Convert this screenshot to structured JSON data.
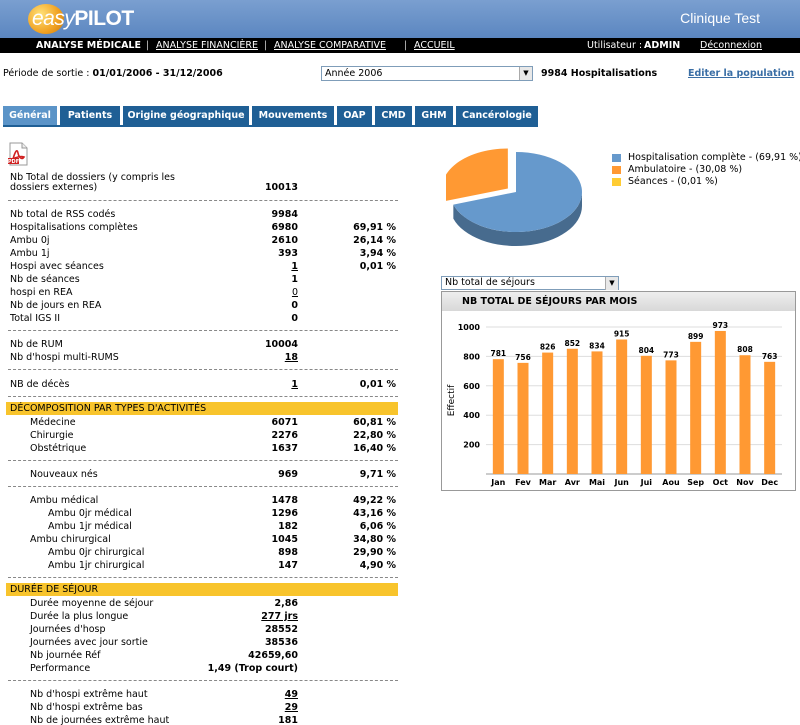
{
  "brand": {
    "logo_text_easy": "easy",
    "logo_text_pilot": "PILOT",
    "clinic": "Clinique Test"
  },
  "nav": {
    "items": [
      "ANALYSE MÉDICALE",
      "ANALYSE FINANCIÈRE",
      "ANALYSE COMPARATIVE",
      "ACCUEIL"
    ],
    "user_label": "Utilisateur :",
    "user": "ADMIN",
    "logout": "Déconnexion"
  },
  "period": {
    "label": "Période de sortie :",
    "value": "01/01/2006 - 31/12/2006",
    "select_value": "Année 2006",
    "hosp_count": "9984 Hospitalisations",
    "edit_link": "Editer la population"
  },
  "tabs": [
    "Général",
    "Patients",
    "Origine géographique",
    "Mouvements",
    "OAP",
    "CMD",
    "GHM",
    "Cancérologie"
  ],
  "stats": {
    "total_dossiers": {
      "label_1": "Nb Total de dossiers (y compris les",
      "label_2": "dossiers externes)",
      "value": "10013"
    },
    "rows_a": [
      {
        "label": "Nb total de RSS codés",
        "value": "9984",
        "pct": ""
      },
      {
        "label": "Hospitalisations complètes",
        "value": "6980",
        "pct": "69,91 %"
      },
      {
        "label": "Ambu 0j",
        "value": "2610",
        "pct": "26,14 %"
      },
      {
        "label": "Ambu 1j",
        "value": "393",
        "pct": "3,94 %"
      },
      {
        "label": "Hospi avec séances",
        "value": "1",
        "pct": "0,01 %"
      },
      {
        "label": "Nb de séances",
        "value": "1",
        "pct": ""
      },
      {
        "label": "hospi en REA",
        "value": "0",
        "pct": ""
      },
      {
        "label": "Nb de jours en REA",
        "value": "0",
        "pct": ""
      },
      {
        "label": "Total IGS II",
        "value": "0",
        "pct": ""
      }
    ],
    "rows_b": [
      {
        "label": "Nb de RUM",
        "value": "10004",
        "pct": ""
      },
      {
        "label": "Nb d'hospi multi-RUMS",
        "value": "18",
        "pct": ""
      }
    ],
    "deces": {
      "label": "NB de décès",
      "value": "1",
      "pct": "0,01 %"
    },
    "section_activites": "DÉCOMPOSITION PAR TYPES D'ACTIVITÉS",
    "rows_c": [
      {
        "label": "Médecine",
        "value": "6071",
        "pct": "60,81 %"
      },
      {
        "label": "Chirurgie",
        "value": "2276",
        "pct": "22,80 %"
      },
      {
        "label": "Obstétrique",
        "value": "1637",
        "pct": "16,40 %"
      }
    ],
    "nouveaux_nes": {
      "label": "Nouveaux nés",
      "value": "969",
      "pct": "9,71 %"
    },
    "rows_d": [
      {
        "label": "Ambu médical",
        "value": "1478",
        "pct": "49,22 %"
      },
      {
        "label": "Ambu 0jr médical",
        "value": "1296",
        "pct": "43,16 %"
      },
      {
        "label": "Ambu 1jr médical",
        "value": "182",
        "pct": "6,06 %"
      },
      {
        "label": "Ambu chirurgical",
        "value": "1045",
        "pct": "34,80 %"
      },
      {
        "label": "Ambu 0jr chirurgical",
        "value": "898",
        "pct": "29,90 %"
      },
      {
        "label": "Ambu 1jr chirurgical",
        "value": "147",
        "pct": "4,90 %"
      }
    ],
    "section_duree": "DURÉE DE SÉJOUR",
    "rows_e": [
      {
        "label": "Durée moyenne de séjour",
        "value": "2,86"
      },
      {
        "label": "Durée la plus longue",
        "value": "277 jrs"
      },
      {
        "label": "Journées d'hosp",
        "value": "28552"
      },
      {
        "label": "Journées avec jour sortie",
        "value": "38536"
      },
      {
        "label": "Nb journée Réf",
        "value": "42659,60"
      },
      {
        "label": "Performance",
        "value": "1,49 (Trop court)"
      }
    ],
    "rows_f": [
      {
        "label": "Nb d'hospi extrême haut",
        "value": "49"
      },
      {
        "label": "Nb d'hospi extrême bas",
        "value": "29"
      },
      {
        "label": "Nb de journées extrême haut",
        "value": "181"
      }
    ]
  },
  "pie": {
    "slices": [
      {
        "label": "Hospitalisation complète - (69,91 %)",
        "value": 69.91,
        "color": "#6699cc"
      },
      {
        "label": "Ambulatoire - (30,08 %)",
        "value": 30.08,
        "color": "#ff9933"
      },
      {
        "label": "Séances - (0,01 %)",
        "value": 0.01,
        "color": "#ffcc33"
      }
    ]
  },
  "chart_select_value": "Nb total de séjours",
  "chart_data": {
    "type": "bar",
    "title": "NB TOTAL DE SÉJOURS PAR MOIS",
    "ylabel": "Effectif",
    "categories": [
      "Jan",
      "Fev",
      "Mar",
      "Avr",
      "Mai",
      "Jun",
      "Jui",
      "Aou",
      "Sep",
      "Oct",
      "Nov",
      "Dec"
    ],
    "values": [
      781,
      756,
      826,
      852,
      834,
      915,
      804,
      773,
      899,
      973,
      808,
      763
    ],
    "yticks": [
      200,
      400,
      600,
      800,
      1000
    ],
    "ylim": [
      0,
      1000
    ],
    "color": "#ff9933",
    "grid": true
  }
}
